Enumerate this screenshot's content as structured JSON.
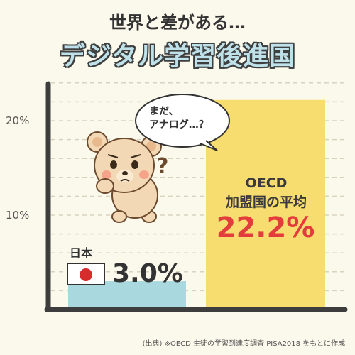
{
  "header": {
    "title": "世界と差がある…",
    "subtitle": "デジタル学習後進国"
  },
  "speech_bubble": {
    "line1": "まだ、",
    "line2": "アナログ…？"
  },
  "icons": [
    "teddy-bear-confused",
    "japan-flag",
    "question-mark-icon"
  ],
  "colors": {
    "japan_bar": "#a9d8df",
    "oecd_bar": "#f7dc6f",
    "oecd_value": "#e23c3c",
    "axis": "#3d3d3d",
    "background": "#fbf9ec"
  },
  "labels": {
    "japan_name": "日本",
    "japan_value": "3.0%",
    "oecd_name_line1": "OECD",
    "oecd_name_line2": "加盟国の平均",
    "oecd_value": "22.2%"
  },
  "source": "(出典) ※OECD 生徒の学習到達度調査 PISA2018 をもとに作成",
  "chart_data": {
    "type": "bar",
    "categories": [
      "日本",
      "OECD 加盟国の平均"
    ],
    "values": [
      3.0,
      22.2
    ],
    "unit": "%",
    "y_ticks": [
      "10%",
      "20%"
    ],
    "ylim": [
      0,
      25
    ],
    "grid": true
  }
}
